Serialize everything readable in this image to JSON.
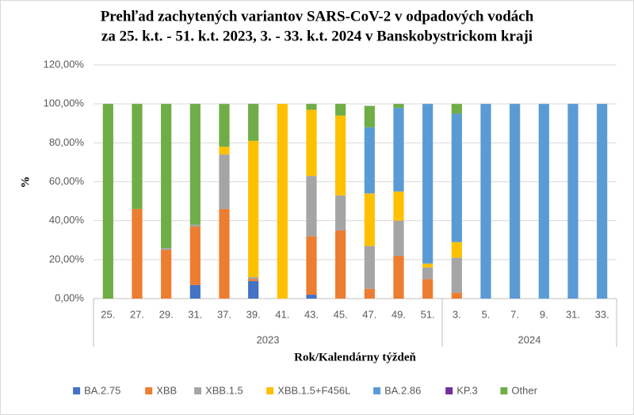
{
  "chart_data": {
    "type": "stacked_bar",
    "title": "Prehľad zachytených variantov   SARS-CoV-2 v odpadových vodách",
    "subtitle": "za 25. k.t.  - 51. k.t. 2023, 3. - 33. k.t. 2024 v Banskobystrickom kraji",
    "ylabel": "%",
    "xlabel": "Rok/Kalendárny týždeň",
    "groups": [
      {
        "label": "2023",
        "categories": [
          "25.",
          "27.",
          "29.",
          "31.",
          "37.",
          "39.",
          "41.",
          "43.",
          "45.",
          "47.",
          "49.",
          "51."
        ]
      },
      {
        "label": "2024",
        "categories": [
          "3.",
          "5.",
          "7.",
          "9.",
          "31.",
          "33."
        ]
      }
    ],
    "series": [
      {
        "name": "BA.2.75",
        "color": "#4472c4",
        "values": [
          0,
          0,
          0,
          7,
          0,
          9,
          0,
          2,
          0,
          0,
          0,
          0,
          0,
          0,
          0,
          0,
          0,
          0
        ]
      },
      {
        "name": "XBB",
        "color": "#ed7d31",
        "values": [
          0,
          46,
          25,
          30,
          46,
          1,
          0,
          30,
          35,
          5,
          22,
          10,
          3,
          0,
          0,
          0,
          0,
          0
        ]
      },
      {
        "name": "XBB.1.5",
        "color": "#a5a5a5",
        "values": [
          0,
          0,
          1,
          1,
          28,
          1,
          0,
          31,
          18,
          22,
          18,
          6,
          18,
          0,
          0,
          0,
          0,
          0
        ]
      },
      {
        "name": "XBB.1.5+F456L",
        "color": "#ffc000",
        "values": [
          0,
          0,
          0,
          0,
          4,
          70,
          100,
          34,
          41,
          27,
          15,
          2,
          8,
          0,
          0,
          0,
          0,
          0
        ]
      },
      {
        "name": "BA.2.86",
        "color": "#5b9bd5",
        "values": [
          0,
          0,
          0,
          0,
          0,
          0,
          0,
          0,
          0,
          34,
          43,
          82,
          66,
          100,
          100,
          100,
          100,
          100
        ]
      },
      {
        "name": "KP.3",
        "color": "#7030a0",
        "values": [
          0,
          0,
          0,
          0,
          0,
          0,
          0,
          0,
          0,
          0,
          0,
          0,
          0,
          0,
          0,
          0,
          0,
          0
        ]
      },
      {
        "name": "Other",
        "color": "#70ad47",
        "values": [
          100,
          54,
          74,
          62,
          22,
          19,
          0,
          3,
          6,
          11,
          2,
          0,
          5,
          0,
          0,
          0,
          0,
          0
        ]
      }
    ],
    "ylim": [
      0,
      120
    ],
    "yticks": [
      {
        "value": 0,
        "label": "0,00%"
      },
      {
        "value": 20,
        "label": "20,00%"
      },
      {
        "value": 40,
        "label": "40,00%"
      },
      {
        "value": 60,
        "label": "60,00%"
      },
      {
        "value": 80,
        "label": "80,00%"
      },
      {
        "value": 100,
        "label": "100,00%"
      },
      {
        "value": 120,
        "label": "120,00%"
      }
    ],
    "grid": true,
    "legend": "bottom"
  }
}
